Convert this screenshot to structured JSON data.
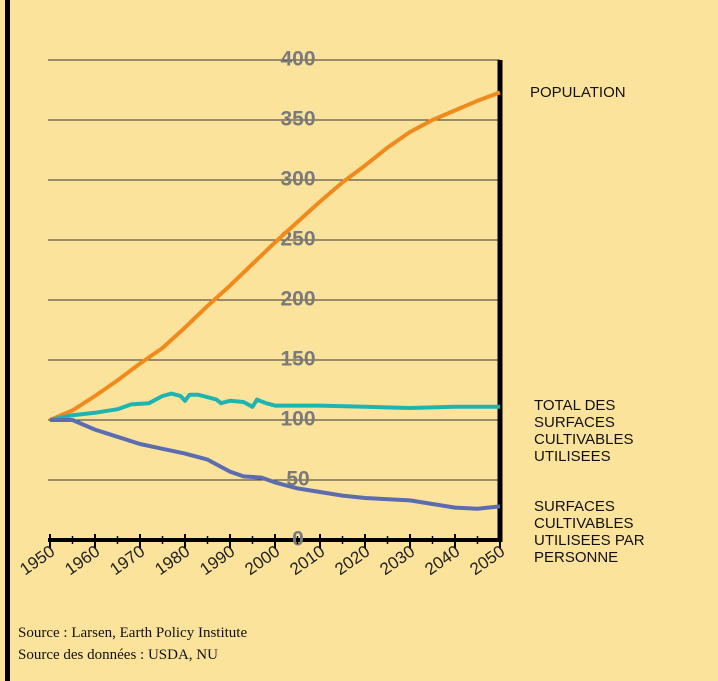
{
  "chart_data": {
    "type": "line",
    "xlim": [
      1950,
      2050
    ],
    "xticks": [
      1950,
      1960,
      1970,
      1980,
      1990,
      2000,
      2010,
      2020,
      2030,
      2040,
      2050
    ],
    "ylim": [
      0,
      400
    ],
    "yticks": [
      0,
      50,
      100,
      150,
      200,
      250,
      300,
      350,
      400
    ],
    "grid": true,
    "series": [
      {
        "name": "POPULATION",
        "color": "#f08a1c",
        "x": [
          1950,
          1955,
          1960,
          1965,
          1970,
          1975,
          1980,
          1985,
          1990,
          1995,
          2000,
          2005,
          2010,
          2015,
          2020,
          2025,
          2030,
          2035,
          2040,
          2045,
          2050
        ],
        "values": [
          100,
          108,
          120,
          133,
          147,
          160,
          177,
          195,
          212,
          230,
          248,
          265,
          282,
          298,
          312,
          327,
          340,
          350,
          358,
          366,
          373
        ]
      },
      {
        "name": "TOTAL DES SURFACES CULTIVABLES UTILISEES",
        "color": "#1eb5b0",
        "x": [
          1950,
          1955,
          1960,
          1965,
          1968,
          1972,
          1975,
          1977,
          1979,
          1980,
          1981,
          1983,
          1985,
          1987,
          1988,
          1990,
          1993,
          1995,
          1996,
          1998,
          2000,
          2010,
          2020,
          2030,
          2040,
          2050
        ],
        "values": [
          100,
          104,
          106,
          109,
          113,
          114,
          120,
          122,
          120,
          116,
          121,
          121,
          119,
          117,
          114,
          116,
          115,
          111,
          117,
          114,
          112,
          112,
          111,
          110,
          111,
          111
        ]
      },
      {
        "name": "SURFACES CULTIVABLES UTILISEES PAR PERSONNE",
        "color": "#5b6cb0",
        "x": [
          1950,
          1955,
          1960,
          1965,
          1970,
          1975,
          1980,
          1985,
          1990,
          1993,
          1997,
          2000,
          2005,
          2010,
          2015,
          2020,
          2030,
          2035,
          2040,
          2045,
          2050
        ],
        "values": [
          100,
          100,
          92,
          86,
          80,
          76,
          72,
          67,
          57,
          53,
          52,
          48,
          43,
          40,
          37,
          35,
          33,
          30,
          27,
          26,
          28
        ]
      }
    ],
    "sources": [
      "Source : Larsen, Earth Policy Institute",
      "Source des données : USDA, NU"
    ]
  }
}
